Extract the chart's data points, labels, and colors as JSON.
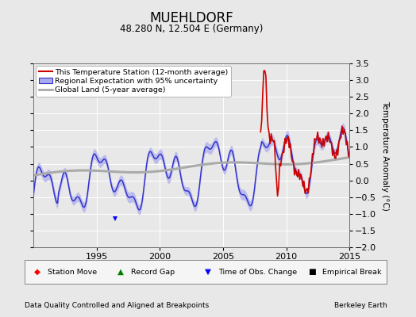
{
  "title": "MUEHLDORF",
  "subtitle": "48.280 N, 12.504 E (Germany)",
  "ylabel": "Temperature Anomaly (°C)",
  "footer_left": "Data Quality Controlled and Aligned at Breakpoints",
  "footer_right": "Berkeley Earth",
  "xlim": [
    1990.0,
    2015.0
  ],
  "ylim": [
    -2.0,
    3.5
  ],
  "yticks": [
    -2,
    -1.5,
    -1,
    -0.5,
    0,
    0.5,
    1,
    1.5,
    2,
    2.5,
    3,
    3.5
  ],
  "xticks": [
    1995,
    2000,
    2005,
    2010,
    2015
  ],
  "bg_color": "#e8e8e8",
  "plot_bg": "#e8e8e8",
  "regional_color": "#3333cc",
  "regional_fill": "#aaaaee",
  "station_color": "#cc0000",
  "global_color": "#aaaaaa",
  "seed": 42
}
